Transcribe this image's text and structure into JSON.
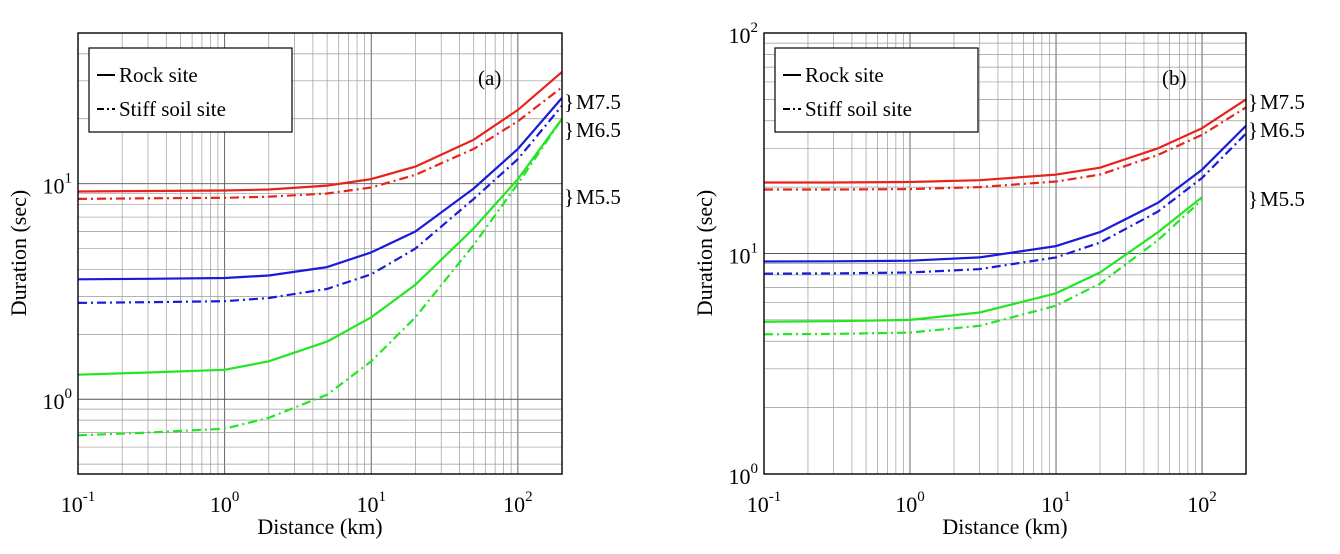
{
  "chart_data": [
    {
      "type": "line",
      "panel_label": "(a)",
      "xlabel": "Distance (km)",
      "ylabel": "Duration (sec)",
      "x_scale": "log",
      "y_scale": "log",
      "xlim": [
        0.1,
        200
      ],
      "ylim": [
        0.45,
        50
      ],
      "x_ticks": [
        {
          "value": 0.1,
          "base": "10",
          "exp": "-1"
        },
        {
          "value": 1,
          "base": "10",
          "exp": "0"
        },
        {
          "value": 10,
          "base": "10",
          "exp": "1"
        },
        {
          "value": 100,
          "base": "10",
          "exp": "2"
        }
      ],
      "y_ticks": [
        {
          "value": 1,
          "base": "10",
          "exp": "0"
        },
        {
          "value": 10,
          "base": "10",
          "exp": "1"
        }
      ],
      "grid": true,
      "legend": {
        "placement": "top-left",
        "entries": [
          {
            "label": "Rock site",
            "style": "solid"
          },
          {
            "label": "Stiff soil site",
            "style": "dashdot"
          }
        ]
      },
      "magnitude_labels": [
        {
          "text": "M7.5",
          "color": "#e8231a"
        },
        {
          "text": "M6.5",
          "color": "#1a1adc"
        },
        {
          "text": "M5.5",
          "color": "#22e622"
        }
      ],
      "series": [
        {
          "magnitude": "M7.5",
          "site": "Rock site",
          "color": "#e8231a",
          "style": "solid",
          "x": [
            0.1,
            0.3,
            1,
            2,
            5,
            10,
            20,
            50,
            100,
            200
          ],
          "y": [
            9.2,
            9.25,
            9.3,
            9.4,
            9.8,
            10.5,
            12.0,
            16.0,
            22.0,
            33.0
          ]
        },
        {
          "magnitude": "M7.5",
          "site": "Stiff soil site",
          "color": "#e8231a",
          "style": "dashdot",
          "x": [
            0.1,
            0.3,
            1,
            2,
            5,
            10,
            20,
            50,
            100,
            200
          ],
          "y": [
            8.5,
            8.55,
            8.6,
            8.7,
            9.0,
            9.6,
            11.0,
            14.5,
            19.5,
            28.0
          ]
        },
        {
          "magnitude": "M6.5",
          "site": "Rock site",
          "color": "#1a1adc",
          "style": "solid",
          "x": [
            0.1,
            0.3,
            1,
            2,
            5,
            10,
            20,
            50,
            100,
            200
          ],
          "y": [
            3.6,
            3.62,
            3.65,
            3.75,
            4.1,
            4.8,
            6.0,
            9.5,
            14.5,
            25.0
          ]
        },
        {
          "magnitude": "M6.5",
          "site": "Stiff soil site",
          "color": "#1a1adc",
          "style": "dashdot",
          "x": [
            0.1,
            0.3,
            1,
            2,
            5,
            10,
            20,
            50,
            100,
            200
          ],
          "y": [
            2.8,
            2.82,
            2.85,
            2.95,
            3.25,
            3.8,
            5.0,
            8.5,
            13.0,
            23.0
          ]
        },
        {
          "magnitude": "M5.5",
          "site": "Rock site",
          "color": "#22e622",
          "style": "solid",
          "x": [
            0.1,
            0.3,
            1,
            2,
            5,
            10,
            20,
            50,
            100,
            200
          ],
          "y": [
            1.3,
            1.33,
            1.37,
            1.5,
            1.85,
            2.4,
            3.4,
            6.2,
            10.5,
            20.0
          ]
        },
        {
          "magnitude": "M5.5",
          "site": "Stiff soil site",
          "color": "#22e622",
          "style": "dashdot",
          "x": [
            0.1,
            0.3,
            1,
            2,
            5,
            10,
            20,
            50,
            100,
            200
          ],
          "y": [
            0.68,
            0.7,
            0.73,
            0.82,
            1.05,
            1.5,
            2.4,
            5.2,
            10.0,
            20.0
          ]
        }
      ]
    },
    {
      "type": "line",
      "panel_label": "(b)",
      "xlabel": "Distance (km)",
      "ylabel": "Duration (sec)",
      "x_scale": "log",
      "y_scale": "log",
      "xlim": [
        0.1,
        200
      ],
      "ylim": [
        1,
        100
      ],
      "x_ticks": [
        {
          "value": 0.1,
          "base": "10",
          "exp": "-1"
        },
        {
          "value": 1,
          "base": "10",
          "exp": "0"
        },
        {
          "value": 10,
          "base": "10",
          "exp": "1"
        },
        {
          "value": 100,
          "base": "10",
          "exp": "2"
        }
      ],
      "y_ticks": [
        {
          "value": 1,
          "base": "10",
          "exp": "0"
        },
        {
          "value": 10,
          "base": "10",
          "exp": "1"
        },
        {
          "value": 100,
          "base": "10",
          "exp": "2"
        }
      ],
      "grid": true,
      "legend": {
        "placement": "top-left",
        "entries": [
          {
            "label": "Rock site",
            "style": "solid"
          },
          {
            "label": "Stiff soil site",
            "style": "dashdot"
          }
        ]
      },
      "magnitude_labels": [
        {
          "text": "M7.5",
          "color": "#e8231a"
        },
        {
          "text": "M6.5",
          "color": "#1a1adc"
        },
        {
          "text": "M5.5",
          "color": "#22e622"
        }
      ],
      "series": [
        {
          "magnitude": "M7.5",
          "site": "Rock site",
          "color": "#e8231a",
          "style": "solid",
          "x": [
            0.1,
            0.3,
            1,
            3,
            10,
            20,
            50,
            100,
            200
          ],
          "y": [
            21.0,
            21.0,
            21.1,
            21.5,
            22.8,
            24.5,
            30.0,
            37.0,
            50.0
          ]
        },
        {
          "magnitude": "M7.5",
          "site": "Stiff soil site",
          "color": "#e8231a",
          "style": "dashdot",
          "x": [
            0.1,
            0.3,
            1,
            3,
            10,
            20,
            50,
            100,
            200
          ],
          "y": [
            19.5,
            19.5,
            19.6,
            20.0,
            21.2,
            22.8,
            28.0,
            34.5,
            46.0
          ]
        },
        {
          "magnitude": "M6.5",
          "site": "Rock site",
          "color": "#1a1adc",
          "style": "solid",
          "x": [
            0.1,
            0.3,
            1,
            3,
            10,
            20,
            50,
            100,
            200
          ],
          "y": [
            9.2,
            9.22,
            9.28,
            9.6,
            10.8,
            12.5,
            17.0,
            24.0,
            38.0
          ]
        },
        {
          "magnitude": "M6.5",
          "site": "Stiff soil site",
          "color": "#1a1adc",
          "style": "dashdot",
          "x": [
            0.1,
            0.3,
            1,
            3,
            10,
            20,
            50,
            100,
            200
          ],
          "y": [
            8.1,
            8.12,
            8.2,
            8.5,
            9.6,
            11.2,
            15.5,
            22.0,
            35.0
          ]
        },
        {
          "magnitude": "M5.5",
          "site": "Rock site",
          "color": "#22e622",
          "style": "solid",
          "x": [
            0.1,
            0.3,
            1,
            3,
            10,
            20,
            50,
            100
          ],
          "y": [
            4.9,
            4.93,
            5.0,
            5.4,
            6.6,
            8.2,
            12.5,
            18.0
          ]
        },
        {
          "magnitude": "M5.5",
          "site": "Stiff soil site",
          "color": "#22e622",
          "style": "dashdot",
          "x": [
            0.1,
            0.3,
            1,
            3,
            10,
            20,
            50,
            100
          ],
          "y": [
            4.3,
            4.32,
            4.38,
            4.7,
            5.8,
            7.3,
            11.5,
            17.5
          ]
        }
      ]
    }
  ]
}
